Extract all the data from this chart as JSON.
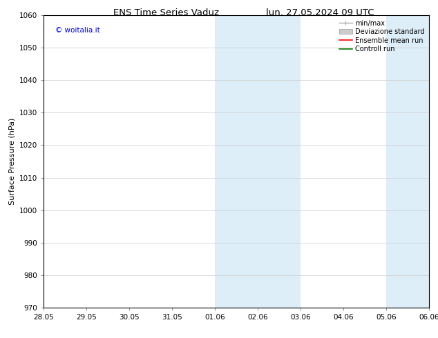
{
  "title_left": "ENS Time Series Vaduz",
  "title_right": "lun. 27.05.2024 09 UTC",
  "ylabel": "Surface Pressure (hPa)",
  "ylim": [
    970,
    1060
  ],
  "yticks": [
    970,
    980,
    990,
    1000,
    1010,
    1020,
    1030,
    1040,
    1050,
    1060
  ],
  "xtick_labels": [
    "28.05",
    "29.05",
    "30.05",
    "31.05",
    "01.06",
    "02.06",
    "03.06",
    "04.06",
    "05.06",
    "06.06"
  ],
  "xtick_positions": [
    0,
    1,
    2,
    3,
    4,
    5,
    6,
    7,
    8,
    9
  ],
  "shaded_regions": [
    {
      "xmin": 4,
      "xmax": 6
    },
    {
      "xmin": 8,
      "xmax": 9
    }
  ],
  "shaded_color": "#ddeef8",
  "legend_entries": [
    {
      "label": "min/max",
      "color": "#aaaaaa",
      "lw": 1.0,
      "style": "minmax"
    },
    {
      "label": "Deviazione standard",
      "color": "#cccccc",
      "lw": 6,
      "style": "band"
    },
    {
      "label": "Ensemble mean run",
      "color": "#ff0000",
      "lw": 1.2,
      "style": "line"
    },
    {
      "label": "Controll run",
      "color": "#007700",
      "lw": 1.2,
      "style": "line"
    }
  ],
  "watermark_text": "© woitalia.it",
  "watermark_color": "#0000cc",
  "background_color": "#ffffff",
  "grid_color": "#cccccc",
  "title_fontsize": 9.5,
  "tick_fontsize": 7.5,
  "ylabel_fontsize": 8,
  "legend_fontsize": 7,
  "watermark_fontsize": 7.5
}
